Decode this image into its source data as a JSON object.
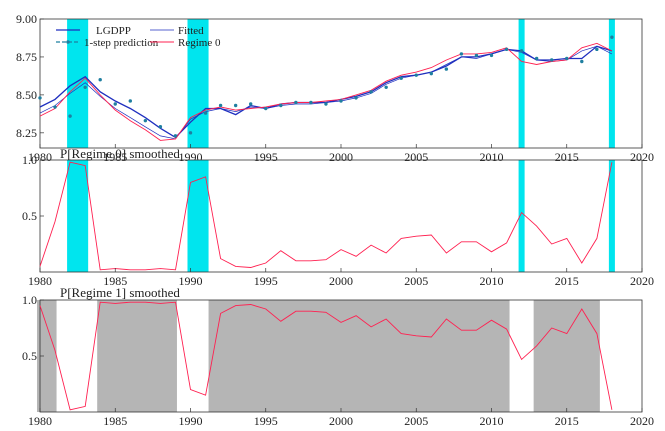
{
  "chart_data": [
    {
      "type": "line",
      "title": "",
      "xlim": [
        1980,
        2020
      ],
      "ylim": [
        8.15,
        9.0
      ],
      "xticks": [
        "1980",
        "1985",
        "1990",
        "1995",
        "2000",
        "2005",
        "2010",
        "2015",
        "2020"
      ],
      "yticks": [
        "8.25",
        "8.50",
        "8.75",
        "9.00"
      ],
      "regime0_shading": [
        [
          1981.8,
          1983.2
        ],
        [
          1989.8,
          1991.2
        ],
        [
          2011.8,
          2012.2
        ],
        [
          2017.8,
          2018.2
        ]
      ],
      "legend": {
        "placement": "top-left",
        "entries": [
          "LGDPP",
          "Fitted",
          "1-step prediction",
          "Regime 0"
        ]
      },
      "series": [
        {
          "name": "LGDPP",
          "x": [
            1980,
            1981,
            1982,
            1983,
            1984,
            1985,
            1986,
            1987,
            1988,
            1989,
            1990,
            1991,
            1992,
            1993,
            1994,
            1995,
            1996,
            1997,
            1998,
            1999,
            2000,
            2001,
            2002,
            2003,
            2004,
            2005,
            2006,
            2007,
            2008,
            2009,
            2010,
            2011,
            2012,
            2013,
            2014,
            2015,
            2016,
            2017,
            2018
          ],
          "values": [
            8.42,
            8.47,
            8.56,
            8.62,
            8.52,
            8.46,
            8.41,
            8.35,
            8.28,
            8.22,
            8.32,
            8.41,
            8.41,
            8.37,
            8.43,
            8.41,
            8.44,
            8.45,
            8.45,
            8.45,
            8.47,
            8.49,
            8.52,
            8.58,
            8.62,
            8.63,
            8.65,
            8.69,
            8.75,
            8.75,
            8.77,
            8.8,
            8.79,
            8.73,
            8.73,
            8.74,
            8.74,
            8.82,
            8.79
          ]
        },
        {
          "name": "Fitted",
          "x": [
            1980,
            1981,
            1982,
            1983,
            1984,
            1985,
            1986,
            1987,
            1988,
            1989,
            1990,
            1991,
            1992,
            1993,
            1994,
            1995,
            1996,
            1997,
            1998,
            1999,
            2000,
            2001,
            2002,
            2003,
            2004,
            2005,
            2006,
            2007,
            2008,
            2009,
            2010,
            2011,
            2012,
            2013,
            2014,
            2015,
            2016,
            2017,
            2018
          ],
          "values": [
            8.38,
            8.43,
            8.51,
            8.58,
            8.49,
            8.41,
            8.35,
            8.29,
            8.23,
            8.21,
            8.34,
            8.39,
            8.41,
            8.39,
            8.42,
            8.41,
            8.43,
            8.44,
            8.44,
            8.45,
            8.46,
            8.48,
            8.51,
            8.57,
            8.61,
            8.63,
            8.65,
            8.7,
            8.75,
            8.74,
            8.77,
            8.8,
            8.78,
            8.73,
            8.72,
            8.73,
            8.79,
            8.82,
            8.77
          ]
        },
        {
          "name": "1-step prediction",
          "x": [
            1980,
            1981,
            1982,
            1983,
            1984,
            1985,
            1986,
            1987,
            1988,
            1989,
            1990,
            1991,
            1992,
            1993,
            1994,
            1995,
            1996,
            1997,
            1998,
            1999,
            2000,
            2001,
            2002,
            2003,
            2004,
            2005,
            2006,
            2007,
            2008,
            2009,
            2010,
            2011,
            2012,
            2013,
            2014,
            2015,
            2016,
            2017,
            2018
          ],
          "values": [
            8.48,
            8.42,
            8.36,
            8.55,
            8.6,
            8.44,
            8.46,
            8.33,
            8.29,
            8.23,
            8.25,
            8.38,
            8.43,
            8.43,
            8.44,
            8.41,
            8.43,
            8.45,
            8.45,
            8.44,
            8.46,
            8.48,
            8.52,
            8.55,
            8.61,
            8.63,
            8.64,
            8.67,
            8.77,
            8.76,
            8.76,
            8.8,
            8.79,
            8.74,
            8.73,
            8.74,
            8.72,
            8.8,
            8.88
          ]
        },
        {
          "name": "Regime 0",
          "x": [
            1980,
            1981,
            1982,
            1983,
            1984,
            1985,
            1986,
            1987,
            1988,
            1989,
            1990,
            1991,
            1992,
            1993,
            1994,
            1995,
            1996,
            1997,
            1998,
            1999,
            2000,
            2001,
            2002,
            2003,
            2004,
            2005,
            2006,
            2007,
            2008,
            2009,
            2010,
            2011,
            2012,
            2013,
            2014,
            2015,
            2016,
            2017,
            2018
          ],
          "values": [
            8.36,
            8.41,
            8.52,
            8.61,
            8.5,
            8.4,
            8.33,
            8.27,
            8.2,
            8.21,
            8.35,
            8.4,
            8.42,
            8.4,
            8.41,
            8.42,
            8.44,
            8.45,
            8.45,
            8.46,
            8.47,
            8.5,
            8.53,
            8.59,
            8.63,
            8.65,
            8.68,
            8.73,
            8.77,
            8.77,
            8.78,
            8.81,
            8.72,
            8.7,
            8.72,
            8.73,
            8.81,
            8.84,
            8.79
          ]
        }
      ],
      "colors": {
        "LGDPP": "#1f2fbf",
        "Fitted": "#1f2fbf",
        "1-step prediction": "#1f7fa0",
        "Regime 0": "#ff2050",
        "shade": "#00e5ee"
      }
    },
    {
      "type": "line",
      "title": "P[Regime 0] smoothed",
      "xlim": [
        1980,
        2020
      ],
      "ylim": [
        0,
        1.0
      ],
      "xticks": [
        "1980",
        "1985",
        "1990",
        "1995",
        "2000",
        "2005",
        "2010",
        "2015",
        "2020"
      ],
      "yticks": [
        "0.5",
        "1.0"
      ],
      "regime0_shading": [
        [
          1981.8,
          1983.2
        ],
        [
          1989.8,
          1991.2
        ],
        [
          2011.8,
          2012.2
        ],
        [
          2017.8,
          2018.2
        ]
      ],
      "series": [
        {
          "x": [
            1980,
            1981,
            1982,
            1983,
            1984,
            1985,
            1986,
            1987,
            1988,
            1989,
            1990,
            1991,
            1992,
            1993,
            1994,
            1995,
            1996,
            1997,
            1998,
            1999,
            2000,
            2001,
            2002,
            2003,
            2004,
            2005,
            2006,
            2007,
            2008,
            2009,
            2010,
            2011,
            2012,
            2013,
            2014,
            2015,
            2016,
            2017,
            2018
          ],
          "values": [
            0.05,
            0.45,
            0.98,
            0.95,
            0.02,
            0.03,
            0.02,
            0.02,
            0.03,
            0.02,
            0.8,
            0.85,
            0.12,
            0.05,
            0.04,
            0.08,
            0.19,
            0.1,
            0.1,
            0.11,
            0.2,
            0.14,
            0.24,
            0.17,
            0.3,
            0.32,
            0.33,
            0.17,
            0.27,
            0.27,
            0.18,
            0.26,
            0.53,
            0.41,
            0.25,
            0.3,
            0.08,
            0.3,
            0.98
          ]
        }
      ],
      "colors": {
        "line": "#ff2050",
        "shade": "#00e5ee"
      }
    },
    {
      "type": "line",
      "title": "P[Regime 1] smoothed",
      "xlim": [
        1980,
        2020
      ],
      "ylim": [
        0,
        1.0
      ],
      "xticks": [
        "1980",
        "1985",
        "1990",
        "1995",
        "2000",
        "2005",
        "2010",
        "2015",
        "2020"
      ],
      "yticks": [
        "0.5",
        "1.0"
      ],
      "regime1_shading": [
        [
          1979.8,
          1981.1
        ],
        [
          1983.8,
          1989.1
        ],
        [
          1991.2,
          2011.2
        ],
        [
          2012.8,
          2017.2
        ]
      ],
      "series": [
        {
          "x": [
            1980,
            1981,
            1982,
            1983,
            1984,
            1985,
            1986,
            1987,
            1988,
            1989,
            1990,
            1991,
            1992,
            1993,
            1994,
            1995,
            1996,
            1997,
            1998,
            1999,
            2000,
            2001,
            2002,
            2003,
            2004,
            2005,
            2006,
            2007,
            2008,
            2009,
            2010,
            2011,
            2012,
            2013,
            2014,
            2015,
            2016,
            2017,
            2018
          ],
          "values": [
            0.95,
            0.55,
            0.02,
            0.05,
            0.98,
            0.97,
            0.98,
            0.98,
            0.97,
            0.98,
            0.2,
            0.15,
            0.88,
            0.95,
            0.96,
            0.92,
            0.81,
            0.9,
            0.9,
            0.89,
            0.8,
            0.86,
            0.76,
            0.83,
            0.7,
            0.68,
            0.67,
            0.83,
            0.73,
            0.73,
            0.82,
            0.74,
            0.47,
            0.59,
            0.75,
            0.7,
            0.92,
            0.7,
            0.02
          ]
        }
      ],
      "colors": {
        "line": "#ff2050",
        "shade": "#b5b5b5"
      }
    }
  ]
}
